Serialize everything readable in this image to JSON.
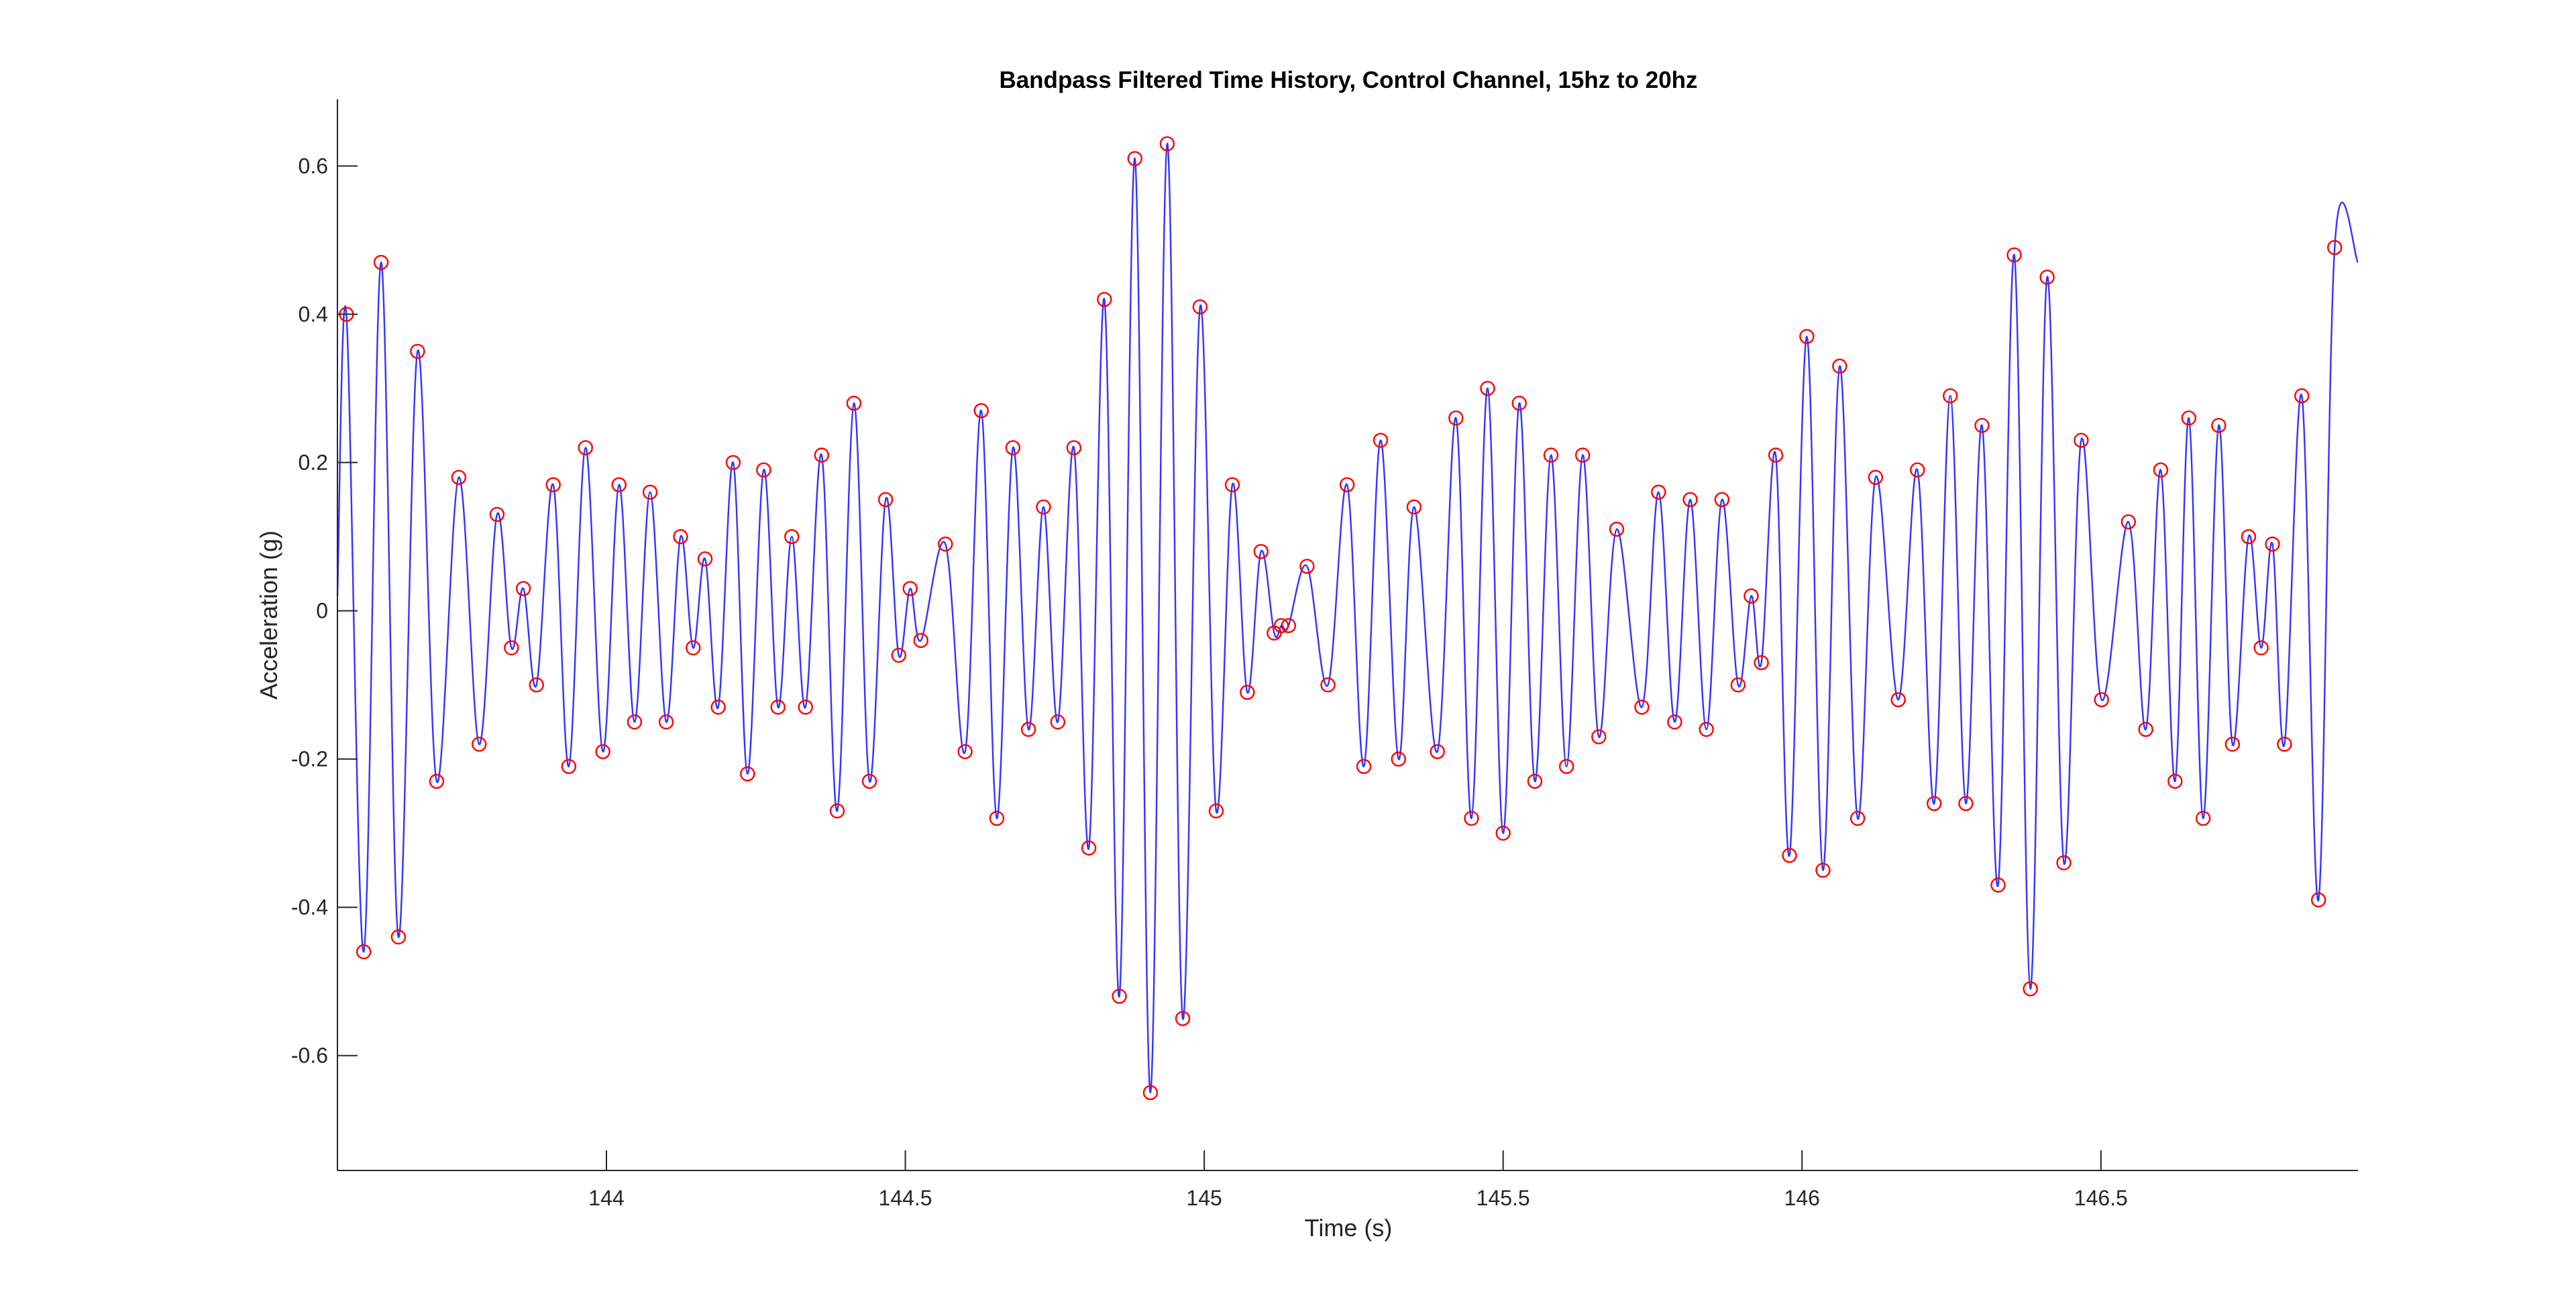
{
  "chart_data": {
    "type": "line",
    "title": "Bandpass Filtered Time History, Control Channel, 15hz to 20hz",
    "xlabel": "Time (s)",
    "ylabel": "Acceleration (g)",
    "xlim": [
      143.55,
      146.93
    ],
    "ylim": [
      -0.755,
      0.69
    ],
    "xticks": [
      144,
      144.5,
      145,
      145.5,
      146,
      146.5
    ],
    "xtick_labels": [
      "144",
      "144.5",
      "145",
      "145.5",
      "146",
      "146.5"
    ],
    "yticks": [
      -0.6,
      -0.4,
      -0.2,
      0,
      0.2,
      0.4,
      0.6
    ],
    "ytick_labels": [
      "-0.6",
      "-0.4",
      "-0.2",
      "0",
      "0.2",
      "0.4",
      "0.6"
    ],
    "grid": false,
    "legend": "none",
    "colors": {
      "line": "#3333ff",
      "marker": "#ff0000",
      "axis": "#262626"
    },
    "start": {
      "x": 143.55,
      "y": 0.02
    },
    "end": {
      "x": 146.93,
      "y": 0.47
    },
    "series": [
      {
        "points": [
          [
            143.565,
            0.4
          ],
          [
            143.594,
            -0.46
          ],
          [
            143.623,
            0.47
          ],
          [
            143.652,
            -0.44
          ],
          [
            143.684,
            0.35
          ],
          [
            143.716,
            -0.23
          ],
          [
            143.753,
            0.18
          ],
          [
            143.787,
            -0.18
          ],
          [
            143.817,
            0.13
          ],
          [
            143.841,
            -0.05
          ],
          [
            143.861,
            0.03
          ],
          [
            143.883,
            -0.1
          ],
          [
            143.911,
            0.17
          ],
          [
            143.937,
            -0.21
          ],
          [
            143.965,
            0.22
          ],
          [
            143.994,
            -0.19
          ],
          [
            144.021,
            0.17
          ],
          [
            144.047,
            -0.15
          ],
          [
            144.073,
            0.16
          ],
          [
            144.1,
            -0.15
          ],
          [
            144.124,
            0.1
          ],
          [
            144.145,
            -0.05
          ],
          [
            144.165,
            0.07
          ],
          [
            144.187,
            -0.13
          ],
          [
            144.212,
            0.2
          ],
          [
            144.236,
            -0.22
          ],
          [
            144.263,
            0.19
          ],
          [
            144.287,
            -0.13
          ],
          [
            144.31,
            0.1
          ],
          [
            144.333,
            -0.13
          ],
          [
            144.36,
            0.21
          ],
          [
            144.386,
            -0.27
          ],
          [
            144.414,
            0.28
          ],
          [
            144.44,
            -0.23
          ],
          [
            144.467,
            0.15
          ],
          [
            144.489,
            -0.06
          ],
          [
            144.508,
            0.03
          ],
          [
            144.526,
            -0.04
          ],
          [
            144.567,
            0.09
          ],
          [
            144.6,
            -0.19
          ],
          [
            144.627,
            0.27
          ],
          [
            144.653,
            -0.28
          ],
          [
            144.68,
            0.22
          ],
          [
            144.706,
            -0.16
          ],
          [
            144.731,
            0.14
          ],
          [
            144.755,
            -0.15
          ],
          [
            144.782,
            0.22
          ],
          [
            144.807,
            -0.32
          ],
          [
            144.833,
            0.42
          ],
          [
            144.858,
            -0.52
          ],
          [
            144.884,
            0.61
          ],
          [
            144.91,
            -0.65
          ],
          [
            144.938,
            0.63
          ],
          [
            144.964,
            -0.55
          ],
          [
            144.993,
            0.41
          ],
          [
            145.02,
            -0.27
          ],
          [
            145.047,
            0.17
          ],
          [
            145.072,
            -0.11
          ],
          [
            145.095,
            0.08
          ],
          [
            145.117,
            -0.03
          ],
          [
            145.129,
            -0.02
          ],
          [
            145.141,
            -0.02
          ],
          [
            145.172,
            0.06
          ],
          [
            145.207,
            -0.1
          ],
          [
            145.239,
            0.17
          ],
          [
            145.267,
            -0.21
          ],
          [
            145.295,
            0.23
          ],
          [
            145.325,
            -0.2
          ],
          [
            145.351,
            0.14
          ],
          [
            145.39,
            -0.19
          ],
          [
            145.421,
            0.26
          ],
          [
            145.447,
            -0.28
          ],
          [
            145.474,
            0.3
          ],
          [
            145.5,
            -0.3
          ],
          [
            145.527,
            0.28
          ],
          [
            145.553,
            -0.23
          ],
          [
            145.58,
            0.21
          ],
          [
            145.606,
            -0.21
          ],
          [
            145.633,
            0.21
          ],
          [
            145.66,
            -0.17
          ],
          [
            145.69,
            0.11
          ],
          [
            145.732,
            -0.13
          ],
          [
            145.76,
            0.16
          ],
          [
            145.787,
            -0.15
          ],
          [
            145.813,
            0.15
          ],
          [
            145.84,
            -0.16
          ],
          [
            145.866,
            0.15
          ],
          [
            145.893,
            -0.1
          ],
          [
            145.915,
            0.02
          ],
          [
            145.932,
            -0.07
          ],
          [
            145.956,
            0.21
          ],
          [
            145.979,
            -0.33
          ],
          [
            146.008,
            0.37
          ],
          [
            146.035,
            -0.35
          ],
          [
            146.063,
            0.33
          ],
          [
            146.093,
            -0.28
          ],
          [
            146.123,
            0.18
          ],
          [
            146.161,
            -0.12
          ],
          [
            146.193,
            0.19
          ],
          [
            146.221,
            -0.26
          ],
          [
            146.248,
            0.29
          ],
          [
            146.274,
            -0.26
          ],
          [
            146.301,
            0.25
          ],
          [
            146.328,
            -0.37
          ],
          [
            146.355,
            0.48
          ],
          [
            146.382,
            -0.51
          ],
          [
            146.41,
            0.45
          ],
          [
            146.438,
            -0.34
          ],
          [
            146.467,
            0.23
          ],
          [
            146.501,
            -0.12
          ],
          [
            146.546,
            0.12
          ],
          [
            146.575,
            -0.16
          ],
          [
            146.6,
            0.19
          ],
          [
            146.624,
            -0.23
          ],
          [
            146.647,
            0.26
          ],
          [
            146.671,
            -0.28
          ],
          [
            146.697,
            0.25
          ],
          [
            146.72,
            -0.18
          ],
          [
            146.747,
            0.1
          ],
          [
            146.768,
            -0.05
          ],
          [
            146.787,
            0.09
          ],
          [
            146.807,
            -0.18
          ],
          [
            146.836,
            0.29
          ],
          [
            146.864,
            -0.39
          ],
          [
            146.891,
            0.49
          ]
        ]
      }
    ]
  }
}
